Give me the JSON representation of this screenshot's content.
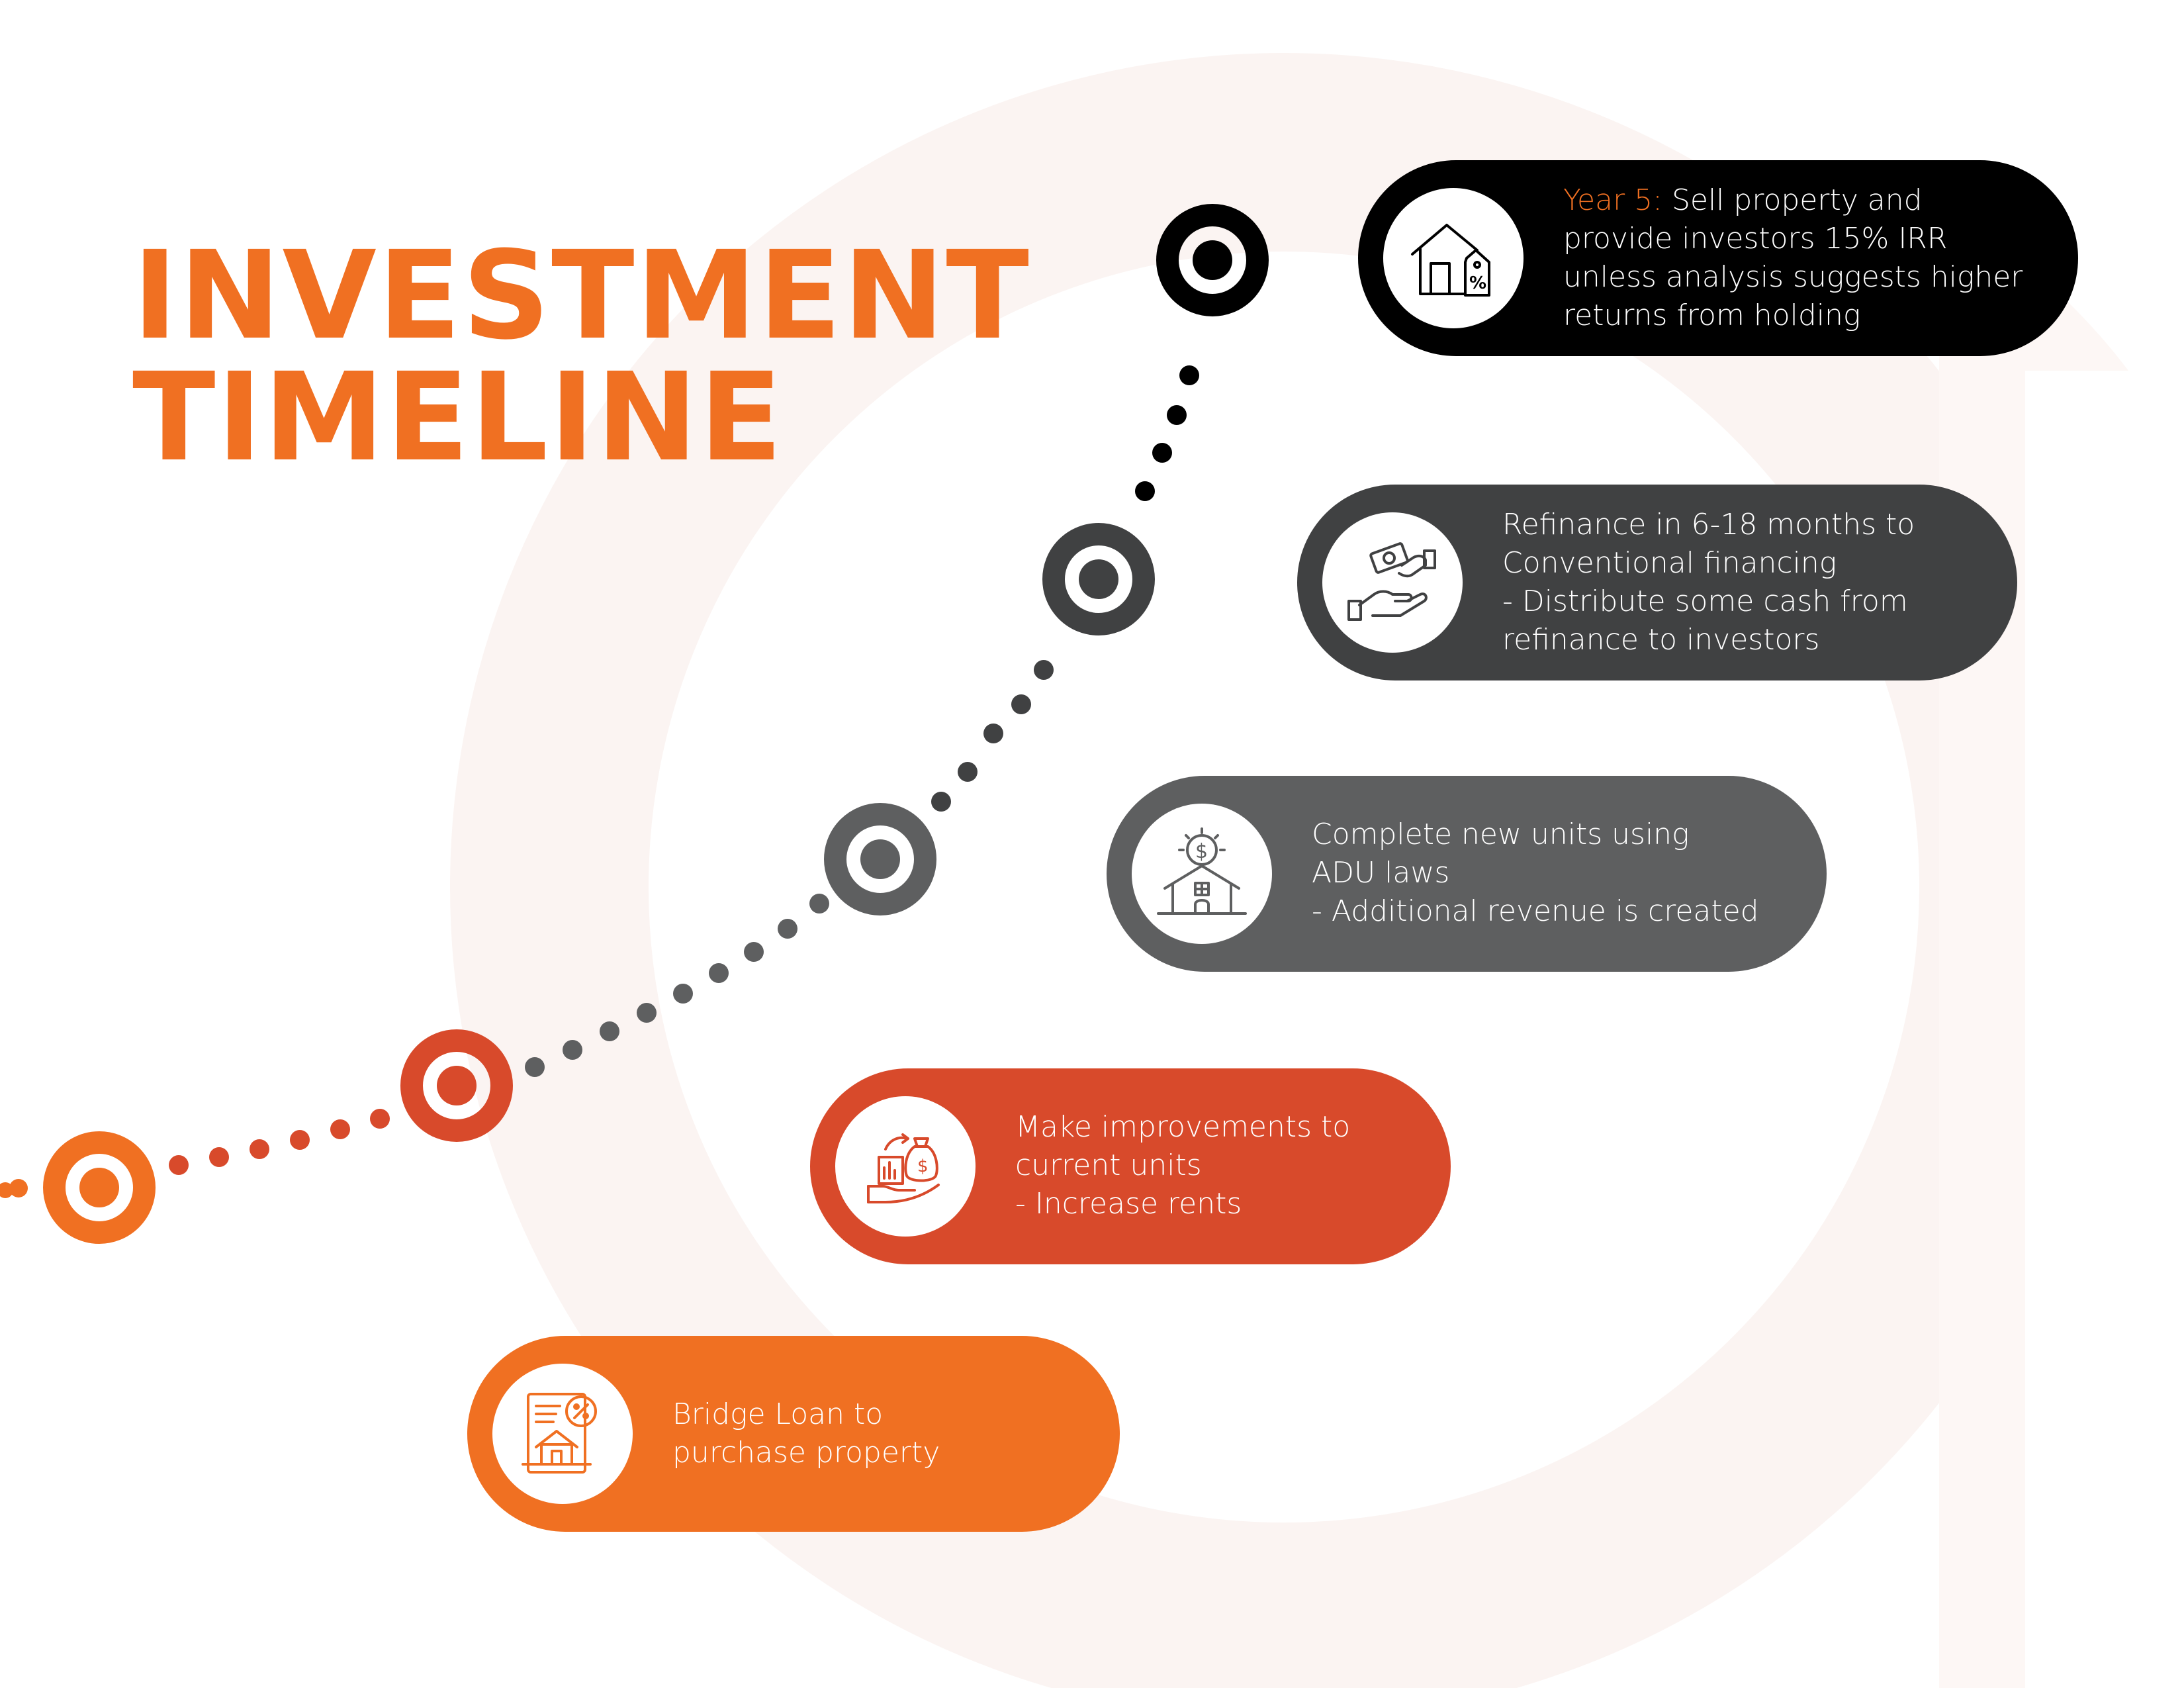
{
  "title": {
    "line1": "INVESTMENT",
    "line2": "TIMELINE"
  },
  "colors": {
    "orange": "#f07022",
    "red_orange": "#d84a2b",
    "mid_gray": "#5e5f60",
    "dark_gray": "#404142",
    "black": "#000000",
    "bg_ring": "#fbf4f2"
  },
  "steps": [
    {
      "id": "bridge-loan",
      "icon": "loan-document-house-icon",
      "color": "#f07022",
      "lines": [
        "Bridge Loan to",
        "purchase property"
      ]
    },
    {
      "id": "improvements",
      "icon": "money-bag-growth-icon",
      "color": "#d84a2b",
      "lines": [
        "Make improvements to",
        "current units",
        "- Increase rents"
      ]
    },
    {
      "id": "new-units",
      "icon": "house-dollar-icon",
      "color": "#5e5f60",
      "lines": [
        "Complete new units using",
        "ADU laws",
        "- Additional revenue is created"
      ]
    },
    {
      "id": "refinance",
      "icon": "hand-money-exchange-icon",
      "color": "#404142",
      "lines": [
        "Refinance in 6-18 months to",
        "Conventional financing",
        "- Distribute some cash from",
        "refinance to investors"
      ]
    },
    {
      "id": "sell",
      "icon": "house-percent-icon",
      "color": "#000000",
      "year_label": "Year 5:",
      "lines": [
        " Sell property and",
        "provide investors 15% IRR",
        "unless analysis suggests higher",
        "returns from holding"
      ]
    }
  ]
}
